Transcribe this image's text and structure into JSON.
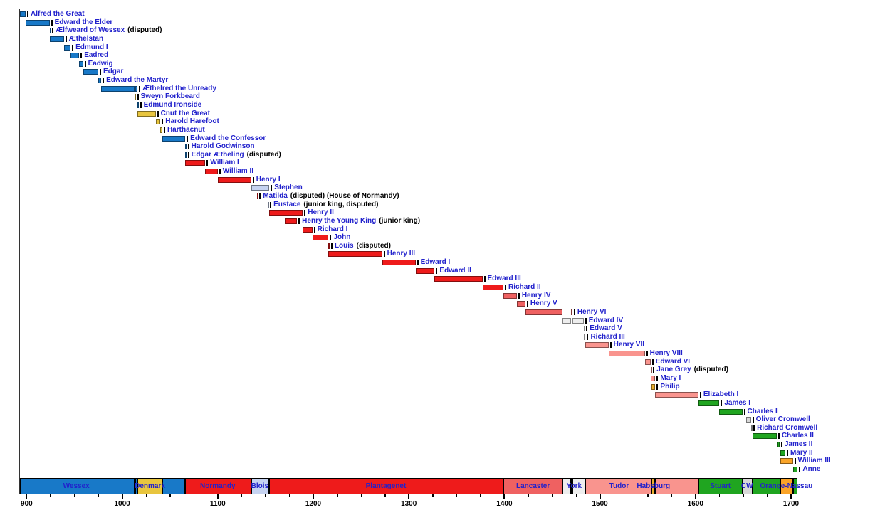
{
  "chart_data": {
    "type": "timeline",
    "x_axis": {
      "min_year": 893,
      "max_year": 1707,
      "major_ticks": [
        900,
        1000,
        1100,
        1200,
        1300,
        1400,
        1500,
        1600,
        1700
      ],
      "minor_tick_step": 25
    },
    "house_colors": {
      "wessex": "#1879c8",
      "denmark": "#e8c53e",
      "normandy": "#ee1b1b",
      "blois": "#c6d3f1",
      "plantagenet": "#ee1b1b",
      "lancaster": "#ef6161",
      "york": "#eeeeee",
      "tudor": "#f9948e",
      "habsburg": "#e9af2e",
      "stuart": "#20a520",
      "commonwealth": "#d8d8d8",
      "orange": "#faa428"
    },
    "monarchs": [
      {
        "name": "Alfred the Great",
        "house": "wessex",
        "reigns": [
          [
            871,
            899
          ]
        ]
      },
      {
        "name": "Edward the Elder",
        "house": "wessex",
        "reigns": [
          [
            899,
            924
          ]
        ]
      },
      {
        "name": "Ælfweard of Wessex",
        "house": "wessex",
        "reigns": [
          [
            924,
            924
          ]
        ],
        "note": "(disputed)"
      },
      {
        "name": "Æthelstan",
        "house": "wessex",
        "reigns": [
          [
            924,
            939
          ]
        ]
      },
      {
        "name": "Edmund I",
        "house": "wessex",
        "reigns": [
          [
            939,
            946
          ]
        ]
      },
      {
        "name": "Eadred",
        "house": "wessex",
        "reigns": [
          [
            946,
            955
          ]
        ]
      },
      {
        "name": "Eadwig",
        "house": "wessex",
        "reigns": [
          [
            955,
            959
          ]
        ]
      },
      {
        "name": "Edgar",
        "house": "wessex",
        "reigns": [
          [
            959,
            975
          ]
        ]
      },
      {
        "name": "Edward the Martyr",
        "house": "wessex",
        "reigns": [
          [
            975,
            978
          ]
        ]
      },
      {
        "name": "Æthelred the Unready",
        "house": "wessex",
        "reigns": [
          [
            978,
            1013
          ],
          [
            1014,
            1016
          ]
        ]
      },
      {
        "name": "Sweyn Forkbeard",
        "house": "denmark",
        "reigns": [
          [
            1013,
            1014
          ]
        ]
      },
      {
        "name": "Edmund Ironside",
        "house": "wessex",
        "reigns": [
          [
            1016,
            1016
          ]
        ]
      },
      {
        "name": "Cnut the Great",
        "house": "denmark",
        "reigns": [
          [
            1016,
            1035
          ]
        ]
      },
      {
        "name": "Harold Harefoot",
        "house": "denmark",
        "reigns": [
          [
            1035,
            1040
          ]
        ]
      },
      {
        "name": "Harthacnut",
        "house": "denmark",
        "reigns": [
          [
            1040,
            1042
          ]
        ]
      },
      {
        "name": "Edward the Confessor",
        "house": "wessex",
        "reigns": [
          [
            1042,
            1066
          ]
        ]
      },
      {
        "name": "Harold Godwinson",
        "house": "wessex",
        "reigns": [
          [
            1066,
            1066
          ]
        ]
      },
      {
        "name": "Edgar Ætheling",
        "house": "wessex",
        "reigns": [
          [
            1066,
            1066
          ]
        ],
        "note": "(disputed)"
      },
      {
        "name": "William I",
        "house": "normandy",
        "reigns": [
          [
            1066,
            1087
          ]
        ]
      },
      {
        "name": "William II",
        "house": "normandy",
        "reigns": [
          [
            1087,
            1100
          ]
        ]
      },
      {
        "name": "Henry I",
        "house": "normandy",
        "reigns": [
          [
            1100,
            1135
          ]
        ]
      },
      {
        "name": "Stephen",
        "house": "blois",
        "reigns": [
          [
            1135,
            1154
          ]
        ]
      },
      {
        "name": "Matilda",
        "house": "normandy",
        "reigns": [
          [
            1141,
            1141
          ]
        ],
        "note": "(disputed) (House of Normandy)"
      },
      {
        "name": "Eustace",
        "house": "blois",
        "reigns": [
          [
            1152,
            1153
          ]
        ],
        "note": "(junior king, disputed)"
      },
      {
        "name": "Henry II",
        "house": "plantagenet",
        "reigns": [
          [
            1154,
            1189
          ]
        ]
      },
      {
        "name": "Henry the Young King",
        "house": "plantagenet",
        "reigns": [
          [
            1170,
            1183
          ]
        ],
        "note": "(junior king)"
      },
      {
        "name": "Richard I",
        "house": "plantagenet",
        "reigns": [
          [
            1189,
            1199
          ]
        ]
      },
      {
        "name": "John",
        "house": "plantagenet",
        "reigns": [
          [
            1199,
            1216
          ]
        ]
      },
      {
        "name": "Louis",
        "house": "plantagenet",
        "reigns": [
          [
            1216,
            1217
          ]
        ],
        "note": "(disputed)"
      },
      {
        "name": "Henry III",
        "house": "plantagenet",
        "reigns": [
          [
            1216,
            1272
          ]
        ]
      },
      {
        "name": "Edward I",
        "house": "plantagenet",
        "reigns": [
          [
            1272,
            1307
          ]
        ]
      },
      {
        "name": "Edward II",
        "house": "plantagenet",
        "reigns": [
          [
            1307,
            1327
          ]
        ]
      },
      {
        "name": "Edward III",
        "house": "plantagenet",
        "reigns": [
          [
            1327,
            1377
          ]
        ]
      },
      {
        "name": "Richard II",
        "house": "plantagenet",
        "reigns": [
          [
            1377,
            1399
          ]
        ]
      },
      {
        "name": "Henry IV",
        "house": "lancaster",
        "reigns": [
          [
            1399,
            1413
          ]
        ]
      },
      {
        "name": "Henry V",
        "house": "lancaster",
        "reigns": [
          [
            1413,
            1422
          ]
        ]
      },
      {
        "name": "Henry VI",
        "house": "lancaster",
        "reigns": [
          [
            1422,
            1461
          ],
          [
            1470,
            1471
          ]
        ]
      },
      {
        "name": "Edward IV",
        "house": "york",
        "reigns": [
          [
            1461,
            1470
          ],
          [
            1471,
            1483
          ]
        ]
      },
      {
        "name": "Edward V",
        "house": "york",
        "reigns": [
          [
            1483,
            1483
          ]
        ]
      },
      {
        "name": "Richard III",
        "house": "york",
        "reigns": [
          [
            1483,
            1485
          ]
        ]
      },
      {
        "name": "Henry VII",
        "house": "tudor",
        "reigns": [
          [
            1485,
            1509
          ]
        ]
      },
      {
        "name": "Henry VIII",
        "house": "tudor",
        "reigns": [
          [
            1509,
            1547
          ]
        ]
      },
      {
        "name": "Edward VI",
        "house": "tudor",
        "reigns": [
          [
            1547,
            1553
          ]
        ]
      },
      {
        "name": "Jane Grey",
        "house": "tudor",
        "reigns": [
          [
            1553,
            1553
          ]
        ],
        "note": "(disputed)"
      },
      {
        "name": "Mary I",
        "house": "tudor",
        "reigns": [
          [
            1553,
            1558
          ]
        ]
      },
      {
        "name": "Philip",
        "house": "habsburg",
        "reigns": [
          [
            1554,
            1558
          ]
        ]
      },
      {
        "name": "Elizabeth I",
        "house": "tudor",
        "reigns": [
          [
            1558,
            1603
          ]
        ]
      },
      {
        "name": "James I",
        "house": "stuart",
        "reigns": [
          [
            1603,
            1625
          ]
        ]
      },
      {
        "name": "Charles I",
        "house": "stuart",
        "reigns": [
          [
            1625,
            1649
          ]
        ]
      },
      {
        "name": "Oliver Cromwell",
        "house": "commonwealth",
        "reigns": [
          [
            1653,
            1658
          ]
        ]
      },
      {
        "name": "Richard Cromwell",
        "house": "commonwealth",
        "reigns": [
          [
            1658,
            1659
          ]
        ]
      },
      {
        "name": "Charles II",
        "house": "stuart",
        "reigns": [
          [
            1660,
            1685
          ]
        ]
      },
      {
        "name": "James II",
        "house": "stuart",
        "reigns": [
          [
            1685,
            1688
          ]
        ]
      },
      {
        "name": "Mary II",
        "house": "stuart",
        "reigns": [
          [
            1689,
            1694
          ]
        ]
      },
      {
        "name": "William III",
        "house": "orange",
        "reigns": [
          [
            1689,
            1702
          ]
        ]
      },
      {
        "name": "Anne",
        "house": "stuart",
        "reigns": [
          [
            1702,
            1707
          ]
        ]
      }
    ],
    "dynasty_bar": {
      "segments": [
        {
          "house": "wessex",
          "from": 871,
          "till": 1013
        },
        {
          "house": "denmark",
          "from": 1013,
          "till": 1014
        },
        {
          "house": "wessex",
          "from": 1014,
          "till": 1016
        },
        {
          "house": "denmark",
          "from": 1016,
          "till": 1042
        },
        {
          "house": "wessex",
          "from": 1042,
          "till": 1066
        },
        {
          "house": "normandy",
          "from": 1066,
          "till": 1135
        },
        {
          "house": "blois",
          "from": 1135,
          "till": 1154
        },
        {
          "house": "plantagenet",
          "from": 1154,
          "till": 1399
        },
        {
          "house": "lancaster",
          "from": 1399,
          "till": 1461
        },
        {
          "house": "york",
          "from": 1461,
          "till": 1470
        },
        {
          "house": "lancaster",
          "from": 1470,
          "till": 1471
        },
        {
          "house": "york",
          "from": 1471,
          "till": 1485
        },
        {
          "house": "tudor",
          "from": 1485,
          "till": 1554
        },
        {
          "house": "habsburg",
          "from": 1554,
          "till": 1558
        },
        {
          "house": "tudor",
          "from": 1558,
          "till": 1603
        },
        {
          "house": "stuart",
          "from": 1603,
          "till": 1649
        },
        {
          "house": "commonwealth",
          "from": 1649,
          "till": 1660
        },
        {
          "house": "stuart",
          "from": 1660,
          "till": 1689
        },
        {
          "house": "orange",
          "from": 1689,
          "till": 1702
        },
        {
          "house": "stuart",
          "from": 1702,
          "till": 1707
        }
      ],
      "labels": [
        {
          "text": "Wessex",
          "year": 952
        },
        {
          "text": "Denmark",
          "year": 1029
        },
        {
          "text": "Normandy",
          "year": 1100
        },
        {
          "text": "Blois",
          "year": 1144
        },
        {
          "text": "Plantagenet",
          "year": 1276
        },
        {
          "text": "Lancaster",
          "year": 1430
        },
        {
          "text": "York",
          "year": 1473
        },
        {
          "text": "Tudor",
          "year": 1520
        },
        {
          "text": "Habsburg",
          "year": 1556
        },
        {
          "text": "Stuart",
          "year": 1626
        },
        {
          "text": "CW",
          "year": 1654
        },
        {
          "text": "Orange-Nassau",
          "year": 1695
        }
      ]
    },
    "text_colors": {
      "monarch_name": "#2222cc",
      "note": "#000000",
      "axis": "#000000"
    }
  }
}
